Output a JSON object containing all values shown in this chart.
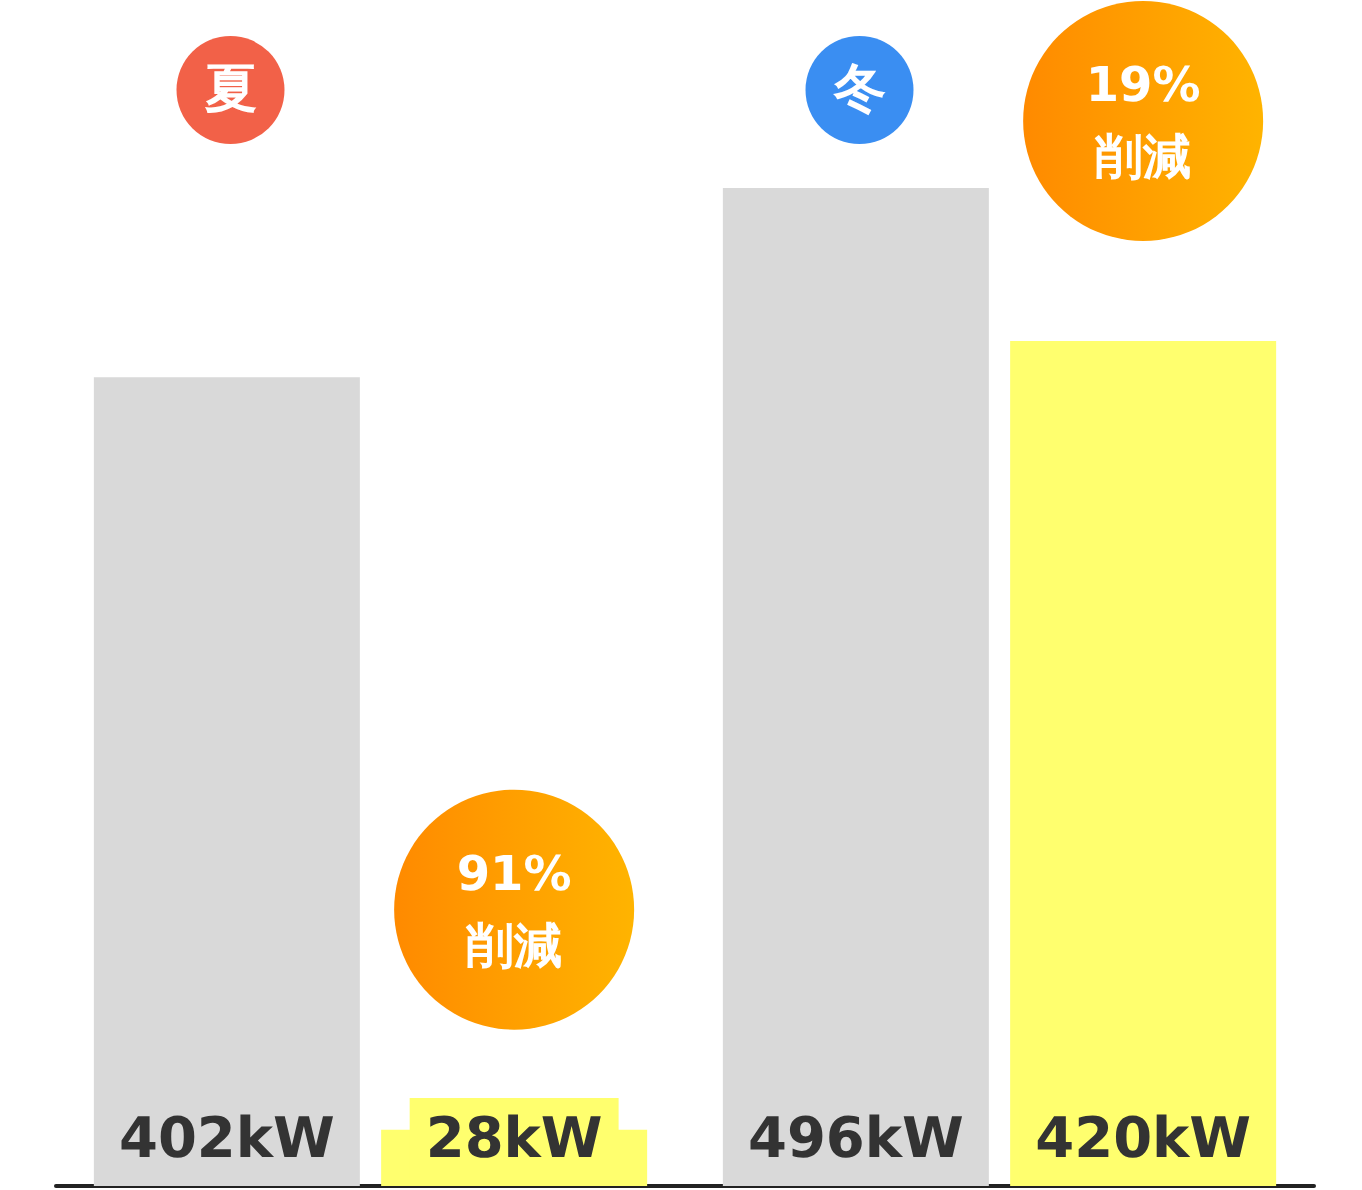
{
  "chart_data": {
    "type": "bar",
    "categories": [
      "夏",
      "冬"
    ],
    "series": [
      {
        "color": "#d9d9d9",
        "values": [
          402,
          496
        ],
        "value_labels": [
          "402kW",
          "496kW"
        ]
      },
      {
        "color": "#ffff6e",
        "values": [
          28,
          420
        ],
        "value_labels": [
          "28kW",
          "420kW"
        ]
      }
    ],
    "annotations": [
      "91%\n削減",
      "19%\n削減"
    ],
    "tick_labels": "x",
    "grid": false
  }
}
